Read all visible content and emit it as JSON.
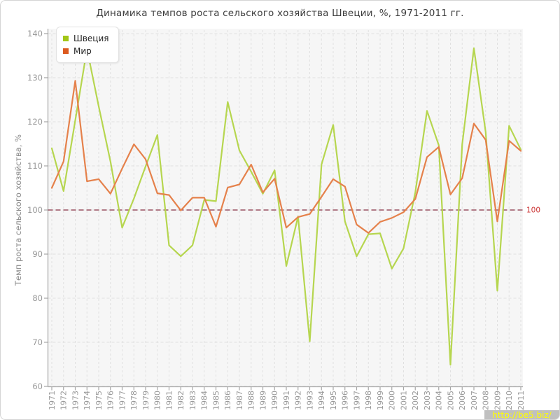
{
  "page": {
    "watermark_text": "http://be5.biz/"
  },
  "chart_data": {
    "type": "line",
    "title": "Динамика темпов роста сельского хозяйства Швеции, %, 1971-2011 гг.",
    "ylabel": "Темп роста сельского хозяйства, %",
    "xlabel": "",
    "ylim": [
      60,
      140
    ],
    "yticks": [
      60,
      70,
      80,
      90,
      100,
      110,
      120,
      130,
      140
    ],
    "grid": true,
    "legend_position": "top-left",
    "x": [
      "1971",
      "1972",
      "1973",
      "1974",
      "1975",
      "1976",
      "1977",
      "1978",
      "1979",
      "1980",
      "1981",
      "1982",
      "1983",
      "1984",
      "1985",
      "1986",
      "1987",
      "1988",
      "1989",
      "1990",
      "1991",
      "1992",
      "1993",
      "1994",
      "1995",
      "1996",
      "1997",
      "1998",
      "1999",
      "2000",
      "2001",
      "2002",
      "2003",
      "2004",
      "2005",
      "2006",
      "2007",
      "2008",
      "2009",
      "2010",
      "2011"
    ],
    "series": [
      {
        "name": "Швеция",
        "color": "#b6d64f",
        "swatch_color": "#a2c617",
        "values": [
          114,
          104.3,
          120.3,
          136.5,
          123.5,
          111,
          96,
          102.6,
          109.9,
          117,
          92,
          89.5,
          92,
          102.3,
          102,
          124.5,
          113.5,
          108.7,
          103.7,
          109,
          87.3,
          98.5,
          70.2,
          110.3,
          119.3,
          97.4,
          89.5,
          94.5,
          94.7,
          86.7,
          91.3,
          104,
          122.5,
          114.7,
          64.9,
          114.9,
          136.7,
          117.7,
          81.7,
          119.1,
          113.7
        ]
      },
      {
        "name": "Мир",
        "color": "#e5814b",
        "swatch_color": "#dc5a1f",
        "values": [
          105,
          111,
          129.3,
          106.5,
          107,
          103.7,
          109.4,
          114.9,
          111.5,
          103.8,
          103.4,
          99.9,
          102.8,
          102.8,
          96.2,
          105.1,
          105.8,
          110.3,
          104,
          107.1,
          96,
          98.4,
          99.1,
          103,
          107,
          105.3,
          96.7,
          94.8,
          97.3,
          98.2,
          99.5,
          102.5,
          112,
          114.3,
          103.5,
          107.2,
          119.6,
          115.9,
          97.4,
          115.7,
          113.4
        ]
      }
    ],
    "reference_line": {
      "value": 100,
      "label": "100"
    },
    "colors": {
      "plot_bg": "#f6f6f6",
      "grid": "#e0e0e0",
      "axis": "#a6a6a6",
      "tick_text": "#999999",
      "title_text": "#3c3c3c",
      "ref_line": "#883044",
      "ref_label": "#cc3333",
      "watermark_bg": "#c0c0c0",
      "watermark_text": "#ffff00"
    }
  }
}
